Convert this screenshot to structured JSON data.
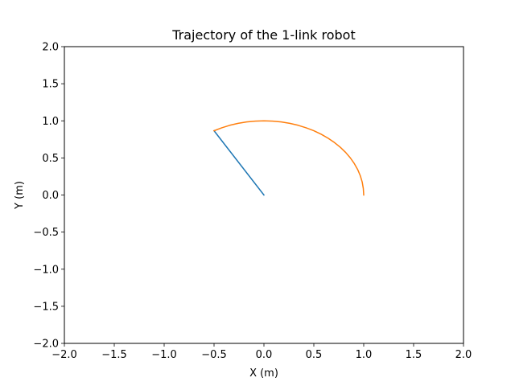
{
  "chart_data": {
    "type": "line",
    "title": "Trajectory of the 1-link robot",
    "xlabel": "X (m)",
    "ylabel": "Y (m)",
    "xlim": [
      -2.0,
      2.0
    ],
    "ylim": [
      -2.0,
      2.0
    ],
    "x_ticks": [
      -2.0,
      -1.5,
      -1.0,
      -0.5,
      0.0,
      0.5,
      1.0,
      1.5,
      2.0
    ],
    "y_ticks": [
      -2.0,
      -1.5,
      -1.0,
      -0.5,
      0.0,
      0.5,
      1.0,
      1.5,
      2.0
    ],
    "x_tick_labels": [
      "−2.0",
      "−1.5",
      "−1.0",
      "−0.5",
      "0.0",
      "0.5",
      "1.0",
      "1.5",
      "2.0"
    ],
    "y_tick_labels": [
      "−2.0",
      "−1.5",
      "−1.0",
      "−0.5",
      "0.0",
      "0.5",
      "1.0",
      "1.5",
      "2.0"
    ],
    "grid": false,
    "series": [
      {
        "color": "#1f77b4",
        "x": [
          0.0,
          -0.5
        ],
        "y": [
          0.0,
          0.866
        ]
      },
      {
        "color": "#ff7f0e",
        "x": [
          1.0,
          0.996,
          0.985,
          0.966,
          0.94,
          0.906,
          0.866,
          0.819,
          0.766,
          0.707,
          0.643,
          0.574,
          0.5,
          0.423,
          0.342,
          0.259,
          0.174,
          0.087,
          0.0,
          -0.087,
          -0.174,
          -0.259,
          -0.342,
          -0.423,
          -0.5
        ],
        "y": [
          0.0,
          0.087,
          0.174,
          0.259,
          0.342,
          0.423,
          0.5,
          0.574,
          0.643,
          0.707,
          0.766,
          0.819,
          0.866,
          0.906,
          0.94,
          0.966,
          0.985,
          0.996,
          1.0,
          0.996,
          0.985,
          0.966,
          0.94,
          0.906,
          0.866
        ]
      }
    ]
  }
}
